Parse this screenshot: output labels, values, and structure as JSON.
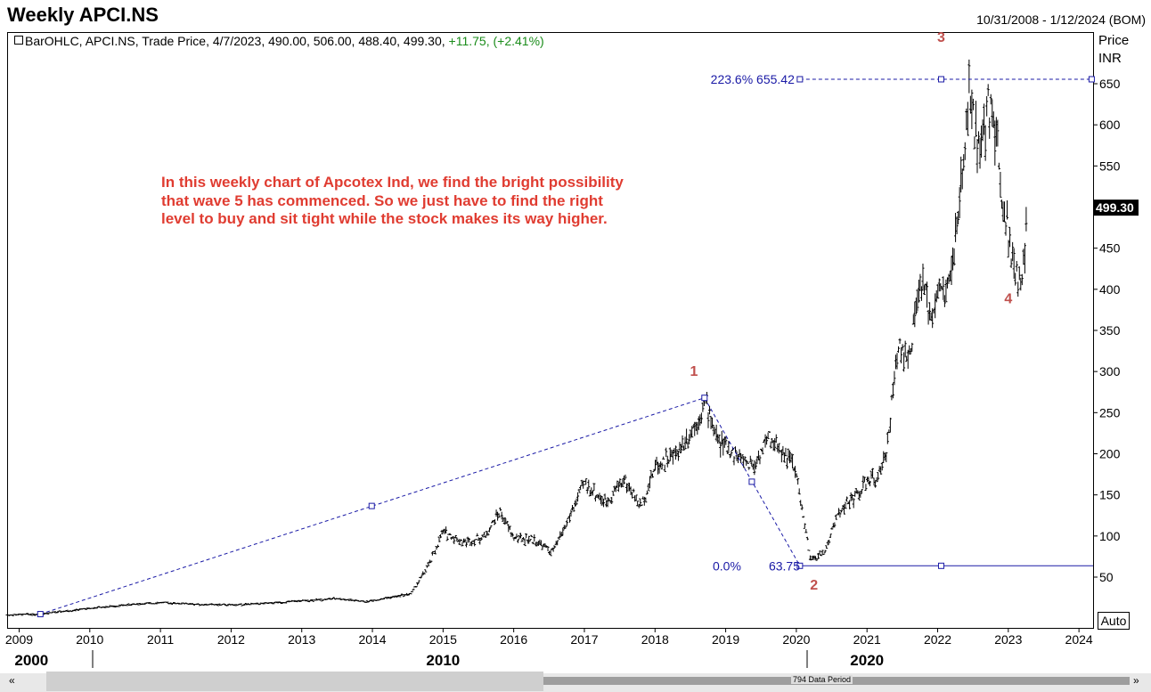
{
  "header": {
    "title": "Weekly APCI.NS",
    "date_range": "10/31/2008 - 1/12/2024 (BOM)"
  },
  "legend": {
    "text": "BarOHLC, APCI.NS, Trade Price, 4/7/2023, 490.00, 506.00, 488.40, 499.30,",
    "change": "+11.75, (+2.41%)"
  },
  "price_axis": {
    "label_line1": "Price",
    "label_line2": "INR",
    "last_price": "499.30",
    "last_price_bg": "#000000",
    "auto_button": "Auto"
  },
  "annotation": {
    "lines": [
      "In this weekly chart of Apcotex Ind, we find the bright possibility",
      "that wave 5 has commenced. So we just have to find the right",
      "level to buy and sit tight while the stock makes its way higher."
    ],
    "color": "#e03c31"
  },
  "scrollbar": {
    "left_arrow": "«",
    "right_arrow": "»",
    "label": "794 Data Period"
  },
  "chart_data": {
    "type": "ohlc",
    "ylim": [
      0,
      700
    ],
    "y_ticks": [
      50,
      100,
      150,
      200,
      250,
      300,
      350,
      400,
      450,
      500,
      550,
      600,
      650
    ],
    "x_ticks": [
      "2009",
      "2010",
      "2011",
      "2012",
      "2013",
      "2014",
      "2015",
      "2016",
      "2017",
      "2018",
      "2019",
      "2020",
      "2021",
      "2022",
      "2023",
      "2024"
    ],
    "decade_labels": [
      {
        "label": "2000",
        "year": 2009.3
      },
      {
        "label": "2010",
        "year": 2015.0
      },
      {
        "label": "2020",
        "year": 2021.0
      }
    ],
    "price_path": [
      [
        2008.83,
        4
      ],
      [
        2009.3,
        5
      ],
      [
        2010.0,
        12
      ],
      [
        2010.5,
        16
      ],
      [
        2011.0,
        19
      ],
      [
        2011.5,
        17
      ],
      [
        2012.0,
        16
      ],
      [
        2012.5,
        18
      ],
      [
        2013.0,
        21
      ],
      [
        2013.5,
        24
      ],
      [
        2013.9,
        20
      ],
      [
        2014.3,
        26
      ],
      [
        2014.55,
        30
      ],
      [
        2014.8,
        65
      ],
      [
        2015.0,
        105
      ],
      [
        2015.3,
        92
      ],
      [
        2015.6,
        100
      ],
      [
        2015.8,
        130
      ],
      [
        2016.0,
        98
      ],
      [
        2016.3,
        95
      ],
      [
        2016.55,
        80
      ],
      [
        2016.8,
        125
      ],
      [
        2017.0,
        165
      ],
      [
        2017.3,
        140
      ],
      [
        2017.55,
        170
      ],
      [
        2017.8,
        135
      ],
      [
        2018.0,
        185
      ],
      [
        2018.3,
        200
      ],
      [
        2018.6,
        240
      ],
      [
        2018.7,
        265
      ],
      [
        2018.9,
        215
      ],
      [
        2019.2,
        195
      ],
      [
        2019.4,
        185
      ],
      [
        2019.6,
        220
      ],
      [
        2019.9,
        195
      ],
      [
        2020.0,
        175
      ],
      [
        2020.2,
        70
      ],
      [
        2020.4,
        80
      ],
      [
        2020.6,
        130
      ],
      [
        2020.8,
        145
      ],
      [
        2021.0,
        165
      ],
      [
        2021.2,
        175
      ],
      [
        2021.3,
        220
      ],
      [
        2021.45,
        340
      ],
      [
        2021.6,
        310
      ],
      [
        2021.75,
        410
      ],
      [
        2021.9,
        370
      ],
      [
        2022.0,
        395
      ],
      [
        2022.15,
        400
      ],
      [
        2022.3,
        490
      ],
      [
        2022.45,
        640
      ],
      [
        2022.6,
        560
      ],
      [
        2022.75,
        640
      ],
      [
        2022.9,
        530
      ],
      [
        2023.0,
        470
      ],
      [
        2023.1,
        420
      ],
      [
        2023.2,
        400
      ],
      [
        2023.27,
        499.3
      ]
    ],
    "last_bar": {
      "date": "4/7/2023",
      "open": 490.0,
      "high": 506.0,
      "low": 488.4,
      "close": 499.3
    },
    "wave_labels": [
      {
        "label": "1",
        "x": 2018.55,
        "y": 295
      },
      {
        "label": "2",
        "x": 2020.25,
        "y": 35
      },
      {
        "label": "3",
        "x": 2022.05,
        "y": 701
      },
      {
        "label": "4",
        "x": 2023.0,
        "y": 383
      }
    ],
    "fib_extension": {
      "points": [
        [
          2009.3,
          5
        ],
        [
          2018.7,
          268
        ],
        [
          2020.05,
          63.75
        ]
      ],
      "mids": [
        [
          2013.99,
          136.5
        ],
        [
          2019.37,
          166
        ]
      ],
      "level_top": {
        "pct": "223.6%",
        "value": "655.42",
        "y": 655.42,
        "handle_x": 2022.05
      },
      "level_base": {
        "pct": "0.0%",
        "value": "63.75",
        "y": 63.75,
        "handle_x": 2022.05
      },
      "color": "#1a1aa6"
    }
  }
}
